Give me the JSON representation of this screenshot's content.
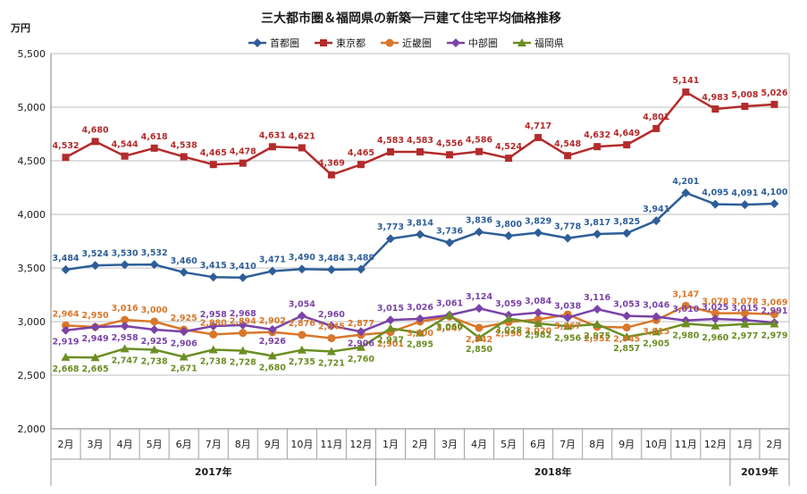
{
  "chart_data": {
    "type": "line",
    "title": "三大都市圏＆福岡県の新築一戸建て住宅平均価格推移",
    "ylabel": "万円",
    "ylim": [
      2000,
      5500
    ],
    "yticks": [
      "2,000",
      "2,500",
      "3,000",
      "3,500",
      "4,000",
      "4,500",
      "5,000",
      "5,500"
    ],
    "ytick_values": [
      2000,
      2500,
      3000,
      3500,
      4000,
      4500,
      5000,
      5500
    ],
    "categories": [
      "2月",
      "3月",
      "4月",
      "5月",
      "6月",
      "7月",
      "8月",
      "9月",
      "10月",
      "11月",
      "12月",
      "1月",
      "2月",
      "3月",
      "4月",
      "5月",
      "6月",
      "7月",
      "8月",
      "9月",
      "10月",
      "11月",
      "12月",
      "1月",
      "2月"
    ],
    "year_groups": [
      {
        "label": "2017年",
        "start": 0,
        "end": 10
      },
      {
        "label": "2018年",
        "start": 11,
        "end": 22
      },
      {
        "label": "2019年",
        "start": 23,
        "end": 24
      }
    ],
    "legend_position": "top",
    "grid": true,
    "series": [
      {
        "name": "首都圏",
        "color": "#2e5e99",
        "marker": "diamond",
        "values": [
          3484,
          3524,
          3530,
          3532,
          3460,
          3415,
          3410,
          3471,
          3490,
          3484,
          3489,
          3773,
          3814,
          3736,
          3836,
          3800,
          3829,
          3778,
          3817,
          3825,
          3941,
          4201,
          4095,
          4091,
          4100
        ],
        "labels": [
          "3,484",
          "3,524",
          "3,530",
          "3,532",
          "3,460",
          "3,415",
          "3,410",
          "3,471",
          "3,490",
          "3,484",
          "3,489",
          "3,773",
          "3,814",
          "3,736",
          "3,836",
          "3,800",
          "3,829",
          "3,778",
          "3,817",
          "3,825",
          "3,941",
          "4,201",
          "4,095",
          "4,091",
          "4,100"
        ]
      },
      {
        "name": "東京都",
        "color": "#b32b2b",
        "marker": "square",
        "values": [
          4532,
          4680,
          4544,
          4618,
          4538,
          4465,
          4478,
          4631,
          4621,
          4369,
          4465,
          4583,
          4583,
          4556,
          4586,
          4524,
          4717,
          4548,
          4632,
          4649,
          4801,
          5141,
          4983,
          5008,
          5026
        ],
        "labels": [
          "4,532",
          "4,680",
          "4,544",
          "4,618",
          "4,538",
          "4,465",
          "4,478",
          "4,631",
          "4,621",
          "4,369",
          "4,465",
          "4,583",
          "4,583",
          "4,556",
          "4,586",
          "4,524",
          "4,717",
          "4,548",
          "4,632",
          "4,649",
          "4,801",
          "5,141",
          "4,983",
          "5,008",
          "5,026"
        ]
      },
      {
        "name": "近畿圏",
        "color": "#d9772a",
        "marker": "circle",
        "values": [
          2964,
          2950,
          3016,
          3000,
          2925,
          2880,
          2894,
          2902,
          2876,
          2845,
          2877,
          2901,
          3000,
          3047,
          2942,
          2996,
          3020,
          3067,
          2952,
          2945,
          3015,
          3147,
          3078,
          3078,
          3069
        ],
        "labels": [
          "2,964",
          "2,950",
          "3,016",
          "3,000",
          "2,925",
          "2,880",
          "2,894",
          "2,902",
          "2,876",
          "2,845",
          "2,877",
          "2,901",
          "3,000",
          "3,047",
          "2,942",
          "2,996",
          "3,020",
          "3,067",
          "2,952",
          "2,945",
          "3,015",
          "3,147",
          "3,078",
          "3,078",
          "3,069"
        ]
      },
      {
        "name": "中部圏",
        "color": "#7a43a8",
        "marker": "diamond",
        "values": [
          2919,
          2949,
          2958,
          2925,
          2906,
          2958,
          2968,
          2926,
          3054,
          2960,
          2906,
          3015,
          3026,
          3061,
          3124,
          3059,
          3084,
          3038,
          3116,
          3053,
          3046,
          3010,
          3025,
          3015,
          2991
        ],
        "labels": [
          "2,919",
          "2,949",
          "2,958",
          "2,925",
          "2,906",
          "2,958",
          "2,968",
          "2,926",
          "3,054",
          "2,960",
          "2,906",
          "3,015",
          "3,026",
          "3,061",
          "3,124",
          "3,059",
          "3,084",
          "3,038",
          "3,116",
          "3,053",
          "3,046",
          "3,010",
          "3,025",
          "3,015",
          "2,991"
        ]
      },
      {
        "name": "福岡県",
        "color": "#6b8e23",
        "marker": "triangle",
        "values": [
          2668,
          2665,
          2747,
          2738,
          2671,
          2738,
          2728,
          2680,
          2735,
          2721,
          2760,
          2937,
          2895,
          3060,
          2850,
          3028,
          2982,
          2956,
          2975,
          2857,
          2905,
          2980,
          2960,
          2977,
          2979
        ],
        "labels": [
          "2,668",
          "2,665",
          "2,747",
          "2,738",
          "2,671",
          "2,738",
          "2,728",
          "2,680",
          "2,735",
          "2,721",
          "2,760",
          "2,937",
          "2,895",
          "3,060",
          "2,850",
          "3,028",
          "2,982",
          "2,956",
          "2,975",
          "2,857",
          "2,905",
          "2,980",
          "2,960",
          "2,977",
          "2,979"
        ]
      }
    ]
  }
}
